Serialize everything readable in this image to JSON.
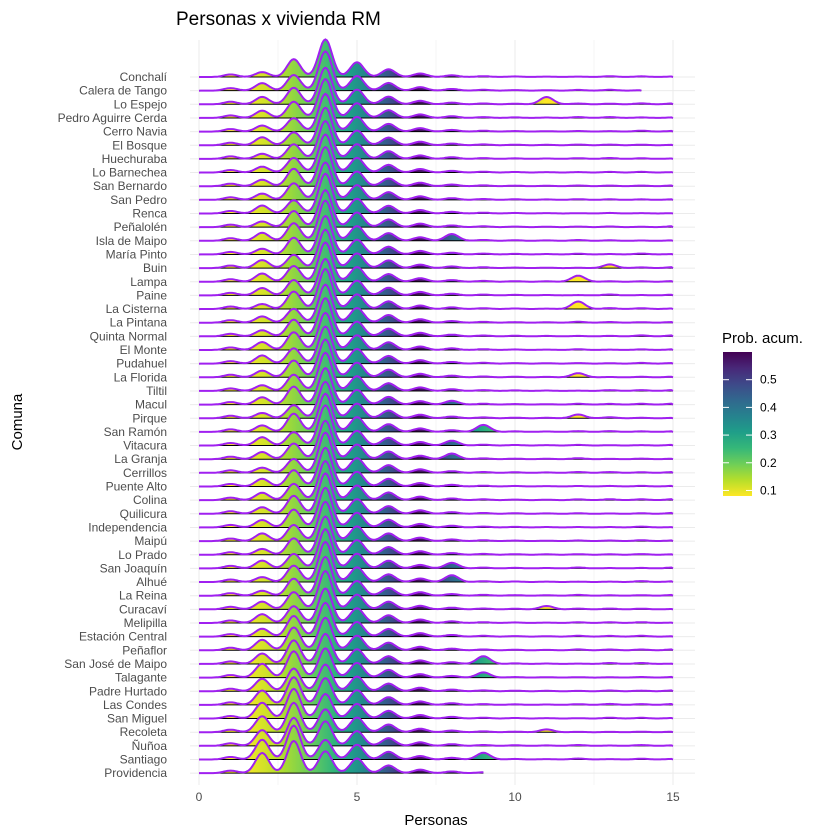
{
  "chart_data": {
    "type": "ridgeline",
    "title": "Personas x vivienda RM",
    "xlabel": "Personas",
    "ylabel": "Comuna",
    "xlim": [
      0,
      15
    ],
    "xticks": [
      0,
      5,
      10,
      15
    ],
    "categories": [
      "Conchalí",
      "Calera de Tango",
      "Lo Espejo",
      "Pedro Aguirre Cerda",
      "Cerro Navia",
      "El Bosque",
      "Huechuraba",
      "Lo Barnechea",
      "San Bernardo",
      "San Pedro",
      "Renca",
      "Peñalolén",
      "Isla de Maipo",
      "María Pinto",
      "Buin",
      "Lampa",
      "Paine",
      "La Cisterna",
      "La Pintana",
      "Quinta Normal",
      "El Monte",
      "Pudahuel",
      "La Florida",
      "Tiltil",
      "Macul",
      "Pirque",
      "San Ramón",
      "Vitacura",
      "La Granja",
      "Cerrillos",
      "Puente Alto",
      "Colina",
      "Quilicura",
      "Independencia",
      "Maipú",
      "Lo Prado",
      "San Joaquín",
      "Alhué",
      "La Reina",
      "Curacaví",
      "Melipilla",
      "Estación Central",
      "Peñaflor",
      "San José de Maipo",
      "Talagante",
      "Padre Hurtado",
      "Las Condes",
      "San Miguel",
      "Recoleta",
      "Ñuñoa",
      "Santiago",
      "Providencia"
    ],
    "max_x": [
      15,
      14,
      15,
      15,
      15,
      15,
      15,
      15,
      15,
      15,
      15,
      15,
      15,
      15,
      15,
      15,
      15,
      15,
      15,
      15,
      15,
      15,
      15,
      15,
      15,
      15,
      15,
      15,
      15,
      15,
      15,
      15,
      15,
      15,
      15,
      15,
      15,
      15,
      15,
      15,
      15,
      15,
      15,
      15,
      15,
      15,
      15,
      15,
      15,
      15,
      15,
      9
    ],
    "legend": {
      "title": "Prob. acum.",
      "ticks": [
        0.1,
        0.2,
        0.3,
        0.4,
        0.5
      ],
      "range": [
        0.08,
        0.6
      ],
      "position": "right"
    },
    "colors": {
      "density_line": "#a020f0",
      "baseline": "#000000",
      "grid": "#ebebeb",
      "palette": [
        "#fde725",
        "#b5de2b",
        "#6ece58",
        "#35b779",
        "#1f9e89",
        "#26828e",
        "#31688e",
        "#3e4989",
        "#482878",
        "#440154"
      ]
    }
  }
}
